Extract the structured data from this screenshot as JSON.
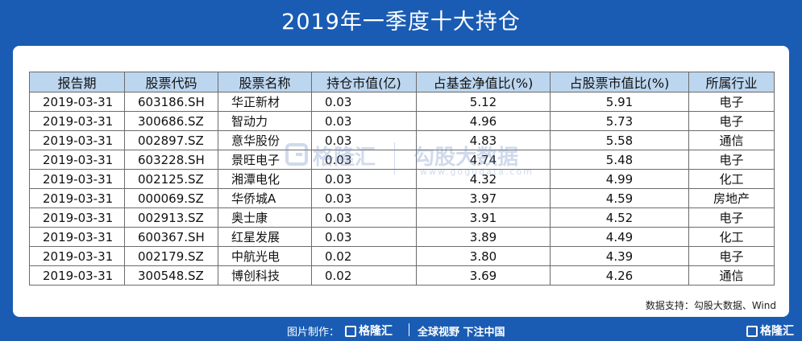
{
  "title": "2019年一季度十大持仓",
  "table": {
    "headers": [
      "报告期",
      "股票代码",
      "股票名称",
      "持仓市值(亿)",
      "占基金净值比(%)",
      "占股票市值比(%)",
      "所属行业"
    ],
    "rows": [
      [
        "2019-03-31",
        "603186.SH",
        "华正新材",
        "0.03",
        "5.12",
        "5.91",
        "电子"
      ],
      [
        "2019-03-31",
        "300686.SZ",
        "智动力",
        "0.03",
        "4.96",
        "5.73",
        "电子"
      ],
      [
        "2019-03-31",
        "002897.SZ",
        "意华股份",
        "0.03",
        "4.83",
        "5.58",
        "通信"
      ],
      [
        "2019-03-31",
        "603228.SH",
        "景旺电子",
        "0.03",
        "4.74",
        "5.48",
        "电子"
      ],
      [
        "2019-03-31",
        "002125.SZ",
        "湘潭电化",
        "0.03",
        "4.32",
        "4.99",
        "化工"
      ],
      [
        "2019-03-31",
        "000069.SZ",
        "华侨城A",
        "0.03",
        "3.97",
        "4.59",
        "房地产"
      ],
      [
        "2019-03-31",
        "002913.SZ",
        "奥士康",
        "0.03",
        "3.91",
        "4.52",
        "电子"
      ],
      [
        "2019-03-31",
        "600367.SH",
        "红星发展",
        "0.03",
        "3.89",
        "4.49",
        "化工"
      ],
      [
        "2019-03-31",
        "002179.SZ",
        "中航光电",
        "0.02",
        "3.80",
        "4.39",
        "电子"
      ],
      [
        "2019-03-31",
        "300548.SZ",
        "博创科技",
        "0.02",
        "3.69",
        "4.26",
        "通信"
      ]
    ]
  },
  "source": "数据支持：勾股大数据、Wind",
  "watermark": {
    "brand": "格隆汇",
    "brand2": "勾股大数据",
    "url": "www.gogudata.com"
  },
  "footer": {
    "made_by": "图片制作：",
    "logo": "格隆汇",
    "slogan": "全球视野 下注中国",
    "corner_logo": "格隆汇"
  }
}
